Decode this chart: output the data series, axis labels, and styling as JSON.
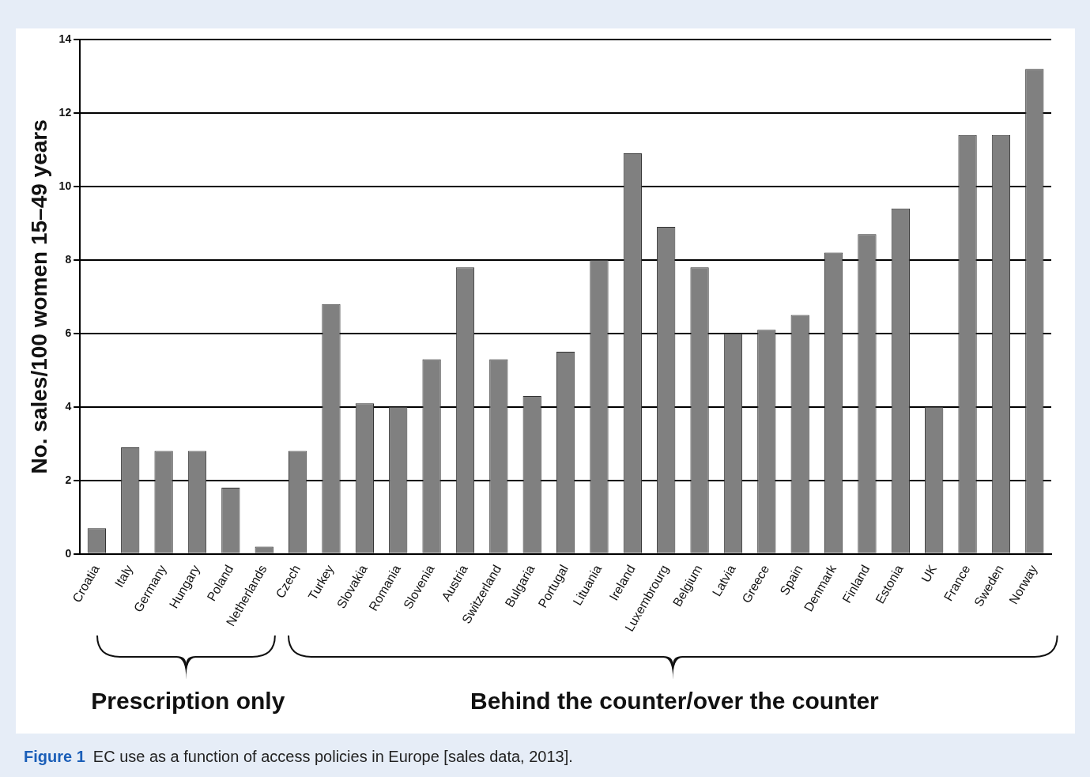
{
  "chart_data": {
    "type": "bar",
    "ylabel": "No. sales/100 women 15–49 years",
    "categories": [
      "Croatia",
      "Italy",
      "Germany",
      "Hungary",
      "Poland",
      "Netherlands",
      "Czech",
      "Turkey",
      "Slovakia",
      "Romania",
      "Slovenia",
      "Austria",
      "Switzerland",
      "Bulgaria",
      "Portugal",
      "Lituania",
      "Ireland",
      "Luxembrourg",
      "Belgium",
      "Latvia",
      "Greece",
      "Spain",
      "Denmark",
      "Finland",
      "Estonia",
      "UK",
      "France",
      "Sweden",
      "Norway"
    ],
    "values": [
      0.7,
      2.9,
      2.8,
      2.8,
      1.8,
      0.2,
      2.8,
      6.8,
      4.1,
      4.0,
      5.3,
      7.8,
      5.3,
      4.3,
      5.5,
      8.0,
      10.9,
      8.9,
      7.8,
      6.0,
      6.1,
      6.5,
      8.2,
      8.7,
      9.4,
      4.0,
      11.4,
      11.4,
      13.2
    ],
    "color": "#808080",
    "ylim": [
      0,
      14
    ],
    "yticks": [
      0,
      2,
      4,
      6,
      8,
      10,
      12,
      14
    ],
    "grid": "y",
    "legend": false,
    "annotations": [
      "Prescription only",
      "Behind the counter/over the counter",
      "Figure 1 EC use as a function of access policies in Europe [sales data, 2013]."
    ]
  }
}
